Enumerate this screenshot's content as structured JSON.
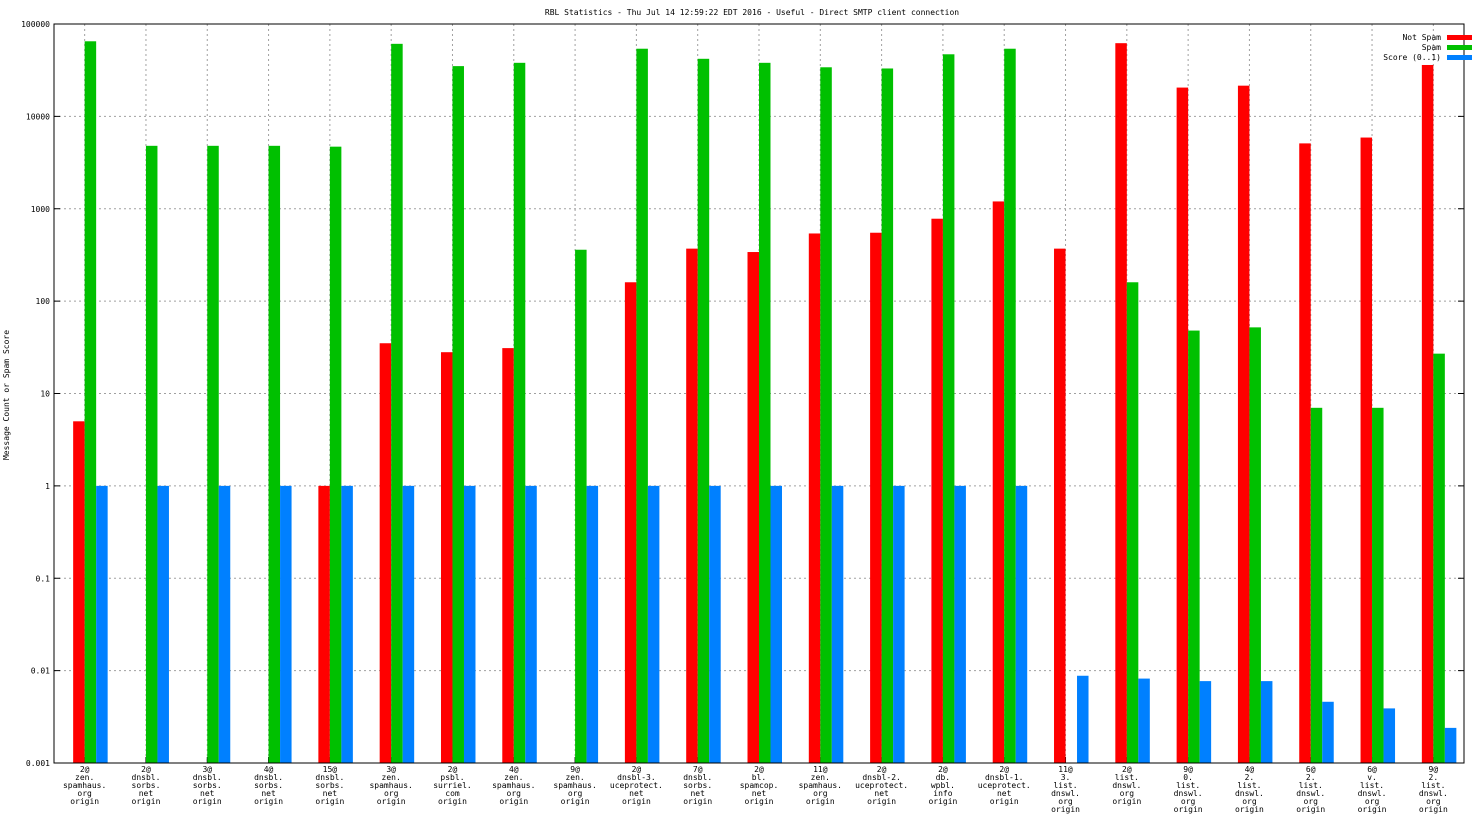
{
  "chart_data": {
    "type": "bar",
    "title": "RBL Statistics - Thu Jul 14 12:59:22 EDT 2016 - Useful - Direct SMTP client connection",
    "xlabel": "",
    "ylabel": "Message Count or Spam Score",
    "yscale": "log",
    "ylim": [
      0.001,
      100000
    ],
    "yticks": [
      "0.001",
      "0.01",
      "0.1",
      "1",
      "10",
      "100",
      "1000",
      "10000",
      "100000"
    ],
    "grid": true,
    "legend_position": "top-right",
    "categories": [
      [
        "2@",
        "zen.",
        "spamhaus.",
        "org",
        "origin"
      ],
      [
        "2@",
        "dnsbl.",
        "sorbs.",
        "net",
        "origin"
      ],
      [
        "3@",
        "dnsbl.",
        "sorbs.",
        "net",
        "origin"
      ],
      [
        "4@",
        "dnsbl.",
        "sorbs.",
        "net",
        "origin"
      ],
      [
        "15@",
        "dnsbl.",
        "sorbs.",
        "net",
        "origin"
      ],
      [
        "3@",
        "zen.",
        "spamhaus.",
        "org",
        "origin"
      ],
      [
        "2@",
        "psbl.",
        "surriel.",
        "com",
        "origin"
      ],
      [
        "4@",
        "zen.",
        "spamhaus.",
        "org",
        "origin"
      ],
      [
        "9@",
        "zen.",
        "spamhaus.",
        "org",
        "origin"
      ],
      [
        "2@",
        "dnsbl-3.",
        "uceprotect.",
        "net",
        "origin"
      ],
      [
        "7@",
        "dnsbl.",
        "sorbs.",
        "net",
        "origin"
      ],
      [
        "2@",
        "bl.",
        "spamcop.",
        "net",
        "origin"
      ],
      [
        "11@",
        "zen.",
        "spamhaus.",
        "org",
        "origin"
      ],
      [
        "2@",
        "dnsbl-2.",
        "uceprotect.",
        "net",
        "origin"
      ],
      [
        "2@",
        "db.",
        "wpbl.",
        "info",
        "origin"
      ],
      [
        "2@",
        "dnsbl-1.",
        "uceprotect.",
        "net",
        "origin"
      ],
      [
        "11@",
        "3.",
        "list.",
        "dnswl.",
        "org",
        "origin"
      ],
      [
        "2@",
        "list.",
        "dnswl.",
        "org",
        "origin"
      ],
      [
        "9@",
        "0.",
        "list.",
        "dnswl.",
        "org",
        "origin"
      ],
      [
        "4@",
        "2.",
        "list.",
        "dnswl.",
        "org",
        "origin"
      ],
      [
        "6@",
        "2.",
        "list.",
        "dnswl.",
        "org",
        "origin"
      ],
      [
        "6@",
        "v.",
        "list.",
        "dnswl.",
        "org",
        "origin"
      ],
      [
        "9@",
        "2.",
        "list.",
        "dnswl.",
        "org",
        "origin"
      ]
    ],
    "series": [
      {
        "name": "Not Spam",
        "color": "#ff0000",
        "values": [
          5,
          null,
          null,
          null,
          1,
          35,
          28,
          31,
          null,
          160,
          370,
          340,
          540,
          550,
          780,
          1200,
          370,
          62000,
          20500,
          21500,
          5100,
          5900,
          36000
        ]
      },
      {
        "name": "Spam",
        "color": "#00c000",
        "values": [
          65000,
          4800,
          4800,
          4800,
          4700,
          61000,
          35000,
          38000,
          360,
          54000,
          42000,
          38000,
          34000,
          33000,
          47000,
          54000,
          null,
          160,
          48,
          52,
          7,
          7,
          27
        ]
      },
      {
        "name": "Score (0..1)",
        "color": "#0080ff",
        "values": [
          1,
          1,
          1,
          1,
          1,
          1,
          1,
          1,
          1,
          1,
          1,
          1,
          1,
          1,
          1,
          1,
          0.0088,
          0.0082,
          0.0077,
          0.0077,
          0.0046,
          0.0039,
          0.0024
        ]
      }
    ]
  }
}
